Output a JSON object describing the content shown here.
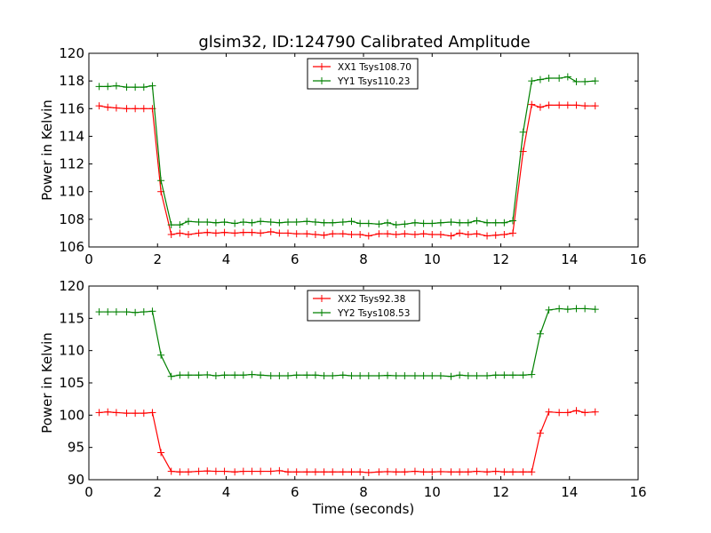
{
  "figure_title": "glsim32, ID:124790 Calibrated Amplitude",
  "chart_data": [
    {
      "type": "line",
      "title": "glsim32, ID:124790 Calibrated Amplitude",
      "xlabel": "",
      "ylabel": "Power in Kelvin",
      "xlim": [
        0,
        16
      ],
      "ylim": [
        106,
        120
      ],
      "xticks": [
        "0",
        "2",
        "4",
        "6",
        "8",
        "10",
        "12",
        "14",
        "16"
      ],
      "yticks": [
        "106",
        "108",
        "110",
        "112",
        "114",
        "116",
        "118",
        "120"
      ],
      "grid": false,
      "legend_position": "top-center",
      "x": [
        0.3,
        0.55,
        0.8,
        1.1,
        1.35,
        1.6,
        1.85,
        2.1,
        2.4,
        2.65,
        2.9,
        3.2,
        3.45,
        3.7,
        3.95,
        4.25,
        4.5,
        4.75,
        5.0,
        5.3,
        5.55,
        5.8,
        6.05,
        6.35,
        6.6,
        6.85,
        7.1,
        7.4,
        7.65,
        7.9,
        8.15,
        8.45,
        8.7,
        8.95,
        9.2,
        9.5,
        9.75,
        10.0,
        10.25,
        10.55,
        10.8,
        11.05,
        11.3,
        11.6,
        11.85,
        12.1,
        12.35,
        12.65,
        12.9,
        13.15,
        13.4,
        13.7,
        13.95,
        14.2,
        14.45,
        14.75
      ],
      "series": [
        {
          "name": "XX1 Tsys108.70",
          "color": "#ff0000",
          "values": [
            116.2,
            116.1,
            116.05,
            116.0,
            116.0,
            116.0,
            116.0,
            110.0,
            106.9,
            107.0,
            106.9,
            107.0,
            107.05,
            107.0,
            107.05,
            107.0,
            107.05,
            107.05,
            107.0,
            107.1,
            107.0,
            107.0,
            106.95,
            106.95,
            106.9,
            106.85,
            106.95,
            106.95,
            106.9,
            106.9,
            106.8,
            106.95,
            106.95,
            106.9,
            106.95,
            106.9,
            106.95,
            106.9,
            106.9,
            106.8,
            107.0,
            106.9,
            106.95,
            106.8,
            106.85,
            106.9,
            107.0,
            112.9,
            116.3,
            116.1,
            116.25,
            116.25,
            116.25,
            116.25,
            116.2,
            116.2
          ]
        },
        {
          "name": "YY1 Tsys110.23",
          "color": "#008000",
          "values": [
            117.6,
            117.6,
            117.65,
            117.55,
            117.55,
            117.55,
            117.65,
            110.8,
            107.6,
            107.6,
            107.85,
            107.8,
            107.8,
            107.75,
            107.8,
            107.7,
            107.8,
            107.75,
            107.85,
            107.8,
            107.75,
            107.8,
            107.8,
            107.85,
            107.8,
            107.75,
            107.75,
            107.8,
            107.85,
            107.7,
            107.7,
            107.65,
            107.75,
            107.6,
            107.65,
            107.75,
            107.7,
            107.7,
            107.75,
            107.8,
            107.75,
            107.75,
            107.9,
            107.75,
            107.75,
            107.75,
            107.9,
            114.3,
            118.0,
            118.1,
            118.2,
            118.2,
            118.3,
            117.95,
            117.95,
            118.0
          ]
        }
      ]
    },
    {
      "type": "line",
      "title": "",
      "xlabel": "Time (seconds)",
      "ylabel": "Power in Kelvin",
      "xlim": [
        0,
        16
      ],
      "ylim": [
        90,
        120
      ],
      "xticks": [
        "0",
        "2",
        "4",
        "6",
        "8",
        "10",
        "12",
        "14",
        "16"
      ],
      "yticks": [
        "90",
        "95",
        "100",
        "105",
        "110",
        "115",
        "120"
      ],
      "grid": false,
      "legend_position": "top-center",
      "x": [
        0.3,
        0.55,
        0.8,
        1.1,
        1.35,
        1.6,
        1.85,
        2.1,
        2.4,
        2.65,
        2.9,
        3.2,
        3.45,
        3.7,
        3.95,
        4.25,
        4.5,
        4.75,
        5.0,
        5.3,
        5.55,
        5.8,
        6.05,
        6.35,
        6.6,
        6.85,
        7.1,
        7.4,
        7.65,
        7.9,
        8.15,
        8.45,
        8.7,
        8.95,
        9.2,
        9.5,
        9.75,
        10.0,
        10.25,
        10.55,
        10.8,
        11.05,
        11.3,
        11.6,
        11.85,
        12.1,
        12.35,
        12.65,
        12.9,
        13.15,
        13.4,
        13.7,
        13.95,
        14.2,
        14.45,
        14.75
      ],
      "series": [
        {
          "name": "XX2 Tsys92.38",
          "color": "#ff0000",
          "values": [
            100.4,
            100.5,
            100.4,
            100.3,
            100.3,
            100.3,
            100.4,
            94.2,
            91.3,
            91.2,
            91.2,
            91.3,
            91.35,
            91.3,
            91.3,
            91.2,
            91.3,
            91.3,
            91.3,
            91.3,
            91.4,
            91.2,
            91.2,
            91.2,
            91.2,
            91.2,
            91.2,
            91.2,
            91.2,
            91.2,
            91.1,
            91.2,
            91.25,
            91.2,
            91.2,
            91.3,
            91.2,
            91.2,
            91.25,
            91.2,
            91.2,
            91.2,
            91.3,
            91.2,
            91.3,
            91.2,
            91.2,
            91.2,
            91.2,
            97.2,
            100.5,
            100.4,
            100.4,
            100.7,
            100.4,
            100.5
          ]
        },
        {
          "name": "YY2 Tsys108.53",
          "color": "#008000",
          "values": [
            116.0,
            116.0,
            116.0,
            116.0,
            115.9,
            116.0,
            116.1,
            109.3,
            106.0,
            106.2,
            106.2,
            106.2,
            106.25,
            106.1,
            106.2,
            106.2,
            106.2,
            106.3,
            106.2,
            106.1,
            106.1,
            106.1,
            106.2,
            106.2,
            106.2,
            106.1,
            106.1,
            106.2,
            106.1,
            106.1,
            106.1,
            106.1,
            106.15,
            106.1,
            106.1,
            106.1,
            106.1,
            106.1,
            106.1,
            106.0,
            106.2,
            106.1,
            106.1,
            106.1,
            106.2,
            106.2,
            106.2,
            106.2,
            106.3,
            112.6,
            116.3,
            116.5,
            116.4,
            116.5,
            116.5,
            116.4
          ]
        }
      ]
    }
  ]
}
